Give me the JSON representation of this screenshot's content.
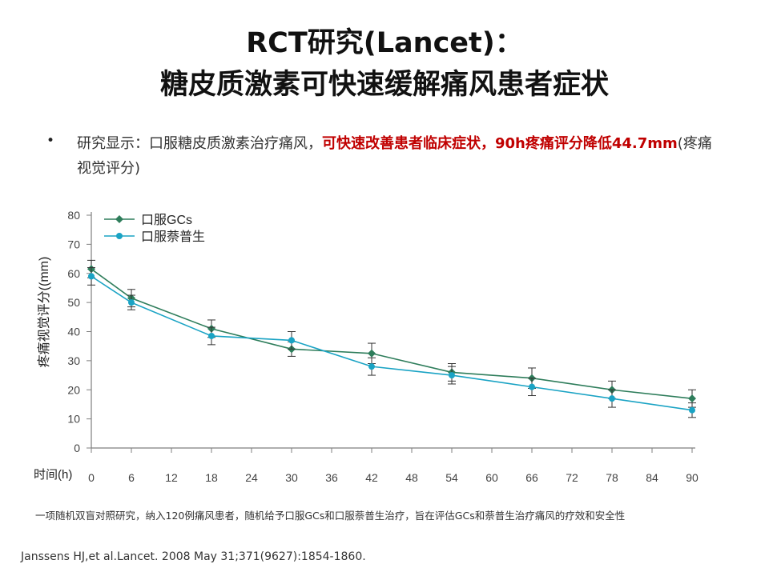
{
  "slide": {
    "title_line1": "RCT研究(Lancet)：",
    "title_line2": "糖皮质激素可快速缓解痛风患者症状",
    "bullet_symbol": "•",
    "bullet_normal": "研究显示：口服糖皮质激素治疗痛风，",
    "bullet_highlight": "可快速改善患者临床症状，90h疼痛评分降低44.7mm",
    "bullet_tail": "(疼痛视觉评分)",
    "footnote": "一项随机双盲对照研究，纳入120例痛风患者，随机给予口服GCs和口服萘普生治疗，旨在评估GCs和萘普生治疗痛风的疗效和安全性",
    "reference": "Janssens HJ,et al.Lancet. 2008 May 31;371(9627):1854-1860."
  },
  "colors": {
    "highlight": "#c00000",
    "series1": "#2e7d5b",
    "series2": "#1aa3c4",
    "axis": "#7f7f7f"
  },
  "chart_data": {
    "type": "line",
    "title": "",
    "xlabel": "时间(h)",
    "ylabel": "疼痛视觉评分((mm)",
    "xlim": [
      0,
      90
    ],
    "ylim": [
      0,
      80
    ],
    "xticks": [
      0,
      6,
      12,
      18,
      24,
      30,
      36,
      42,
      48,
      54,
      60,
      66,
      72,
      78,
      84,
      90
    ],
    "yticks": [
      0,
      10,
      20,
      30,
      40,
      50,
      60,
      70,
      80
    ],
    "legend_position": "top-left",
    "grid": false,
    "series": [
      {
        "name": "口服GCs",
        "marker": "diamond",
        "x": [
          0,
          6,
          18,
          30,
          42,
          54,
          66,
          78,
          90
        ],
        "y": [
          61.5,
          51.5,
          41,
          34,
          32.5,
          26,
          24,
          20,
          17
        ],
        "err": [
          3,
          3,
          3,
          2.5,
          3.5,
          3,
          3.5,
          3,
          3
        ]
      },
      {
        "name": "口服萘普生",
        "marker": "circle",
        "x": [
          0,
          6,
          18,
          30,
          42,
          54,
          66,
          78,
          90
        ],
        "y": [
          59,
          50,
          38.5,
          37,
          28,
          25,
          21,
          17,
          13
        ],
        "err": [
          3,
          2.5,
          3,
          3,
          3,
          3,
          3,
          3,
          2.5
        ]
      }
    ]
  }
}
